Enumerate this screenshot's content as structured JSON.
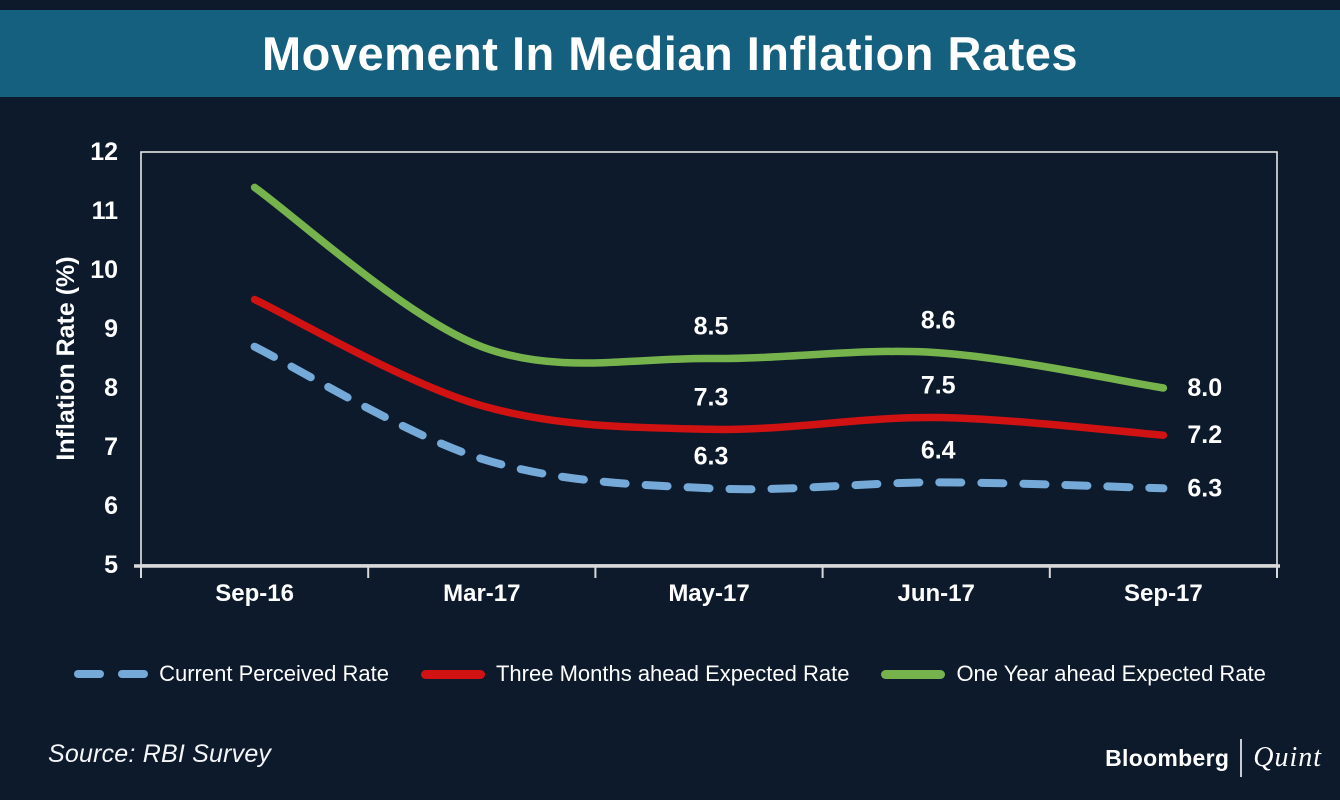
{
  "header": {
    "title": "Movement In Median Inflation Rates"
  },
  "colors": {
    "background": "#0C1A2B",
    "header_bar": "#15607E",
    "axis": "#D9D9D9",
    "text": "#FFFFFF",
    "series_blue": "#74A9D8",
    "series_red": "#D01212",
    "series_green": "#77B34D"
  },
  "chart_data": {
    "type": "line",
    "title": "Movement In Median Inflation Rates",
    "xlabel": "",
    "ylabel": "Inflation Rate (%)",
    "categories": [
      "Sep-16",
      "Mar-17",
      "May-17",
      "Jun-17",
      "Sep-17"
    ],
    "ylim": [
      5,
      12
    ],
    "ytick_step": 1,
    "yticks": [
      5,
      6,
      7,
      8,
      9,
      10,
      11,
      12
    ],
    "grid": false,
    "legend_position": "bottom",
    "series": [
      {
        "name": "Current Perceived Rate",
        "color": "#74A9D8",
        "style": "dashed",
        "values": [
          8.7,
          6.8,
          6.3,
          6.4,
          6.3
        ],
        "point_labels": [
          null,
          null,
          "6.3",
          "6.4",
          null
        ],
        "end_label": "6.3"
      },
      {
        "name": "Three Months ahead Expected Rate",
        "color": "#D01212",
        "style": "solid",
        "values": [
          9.5,
          7.7,
          7.3,
          7.5,
          7.2
        ],
        "point_labels": [
          null,
          null,
          "7.3",
          "7.5",
          null
        ],
        "end_label": "7.2"
      },
      {
        "name": "One Year ahead Expected Rate",
        "color": "#77B34D",
        "style": "solid",
        "values": [
          11.4,
          8.7,
          8.5,
          8.6,
          8.0
        ],
        "point_labels": [
          null,
          null,
          "8.5",
          "8.6",
          null
        ],
        "end_label": "8.0"
      }
    ]
  },
  "footer": {
    "source": "Source: RBI Survey",
    "brand_primary": "Bloomberg",
    "brand_secondary": "Quint"
  }
}
